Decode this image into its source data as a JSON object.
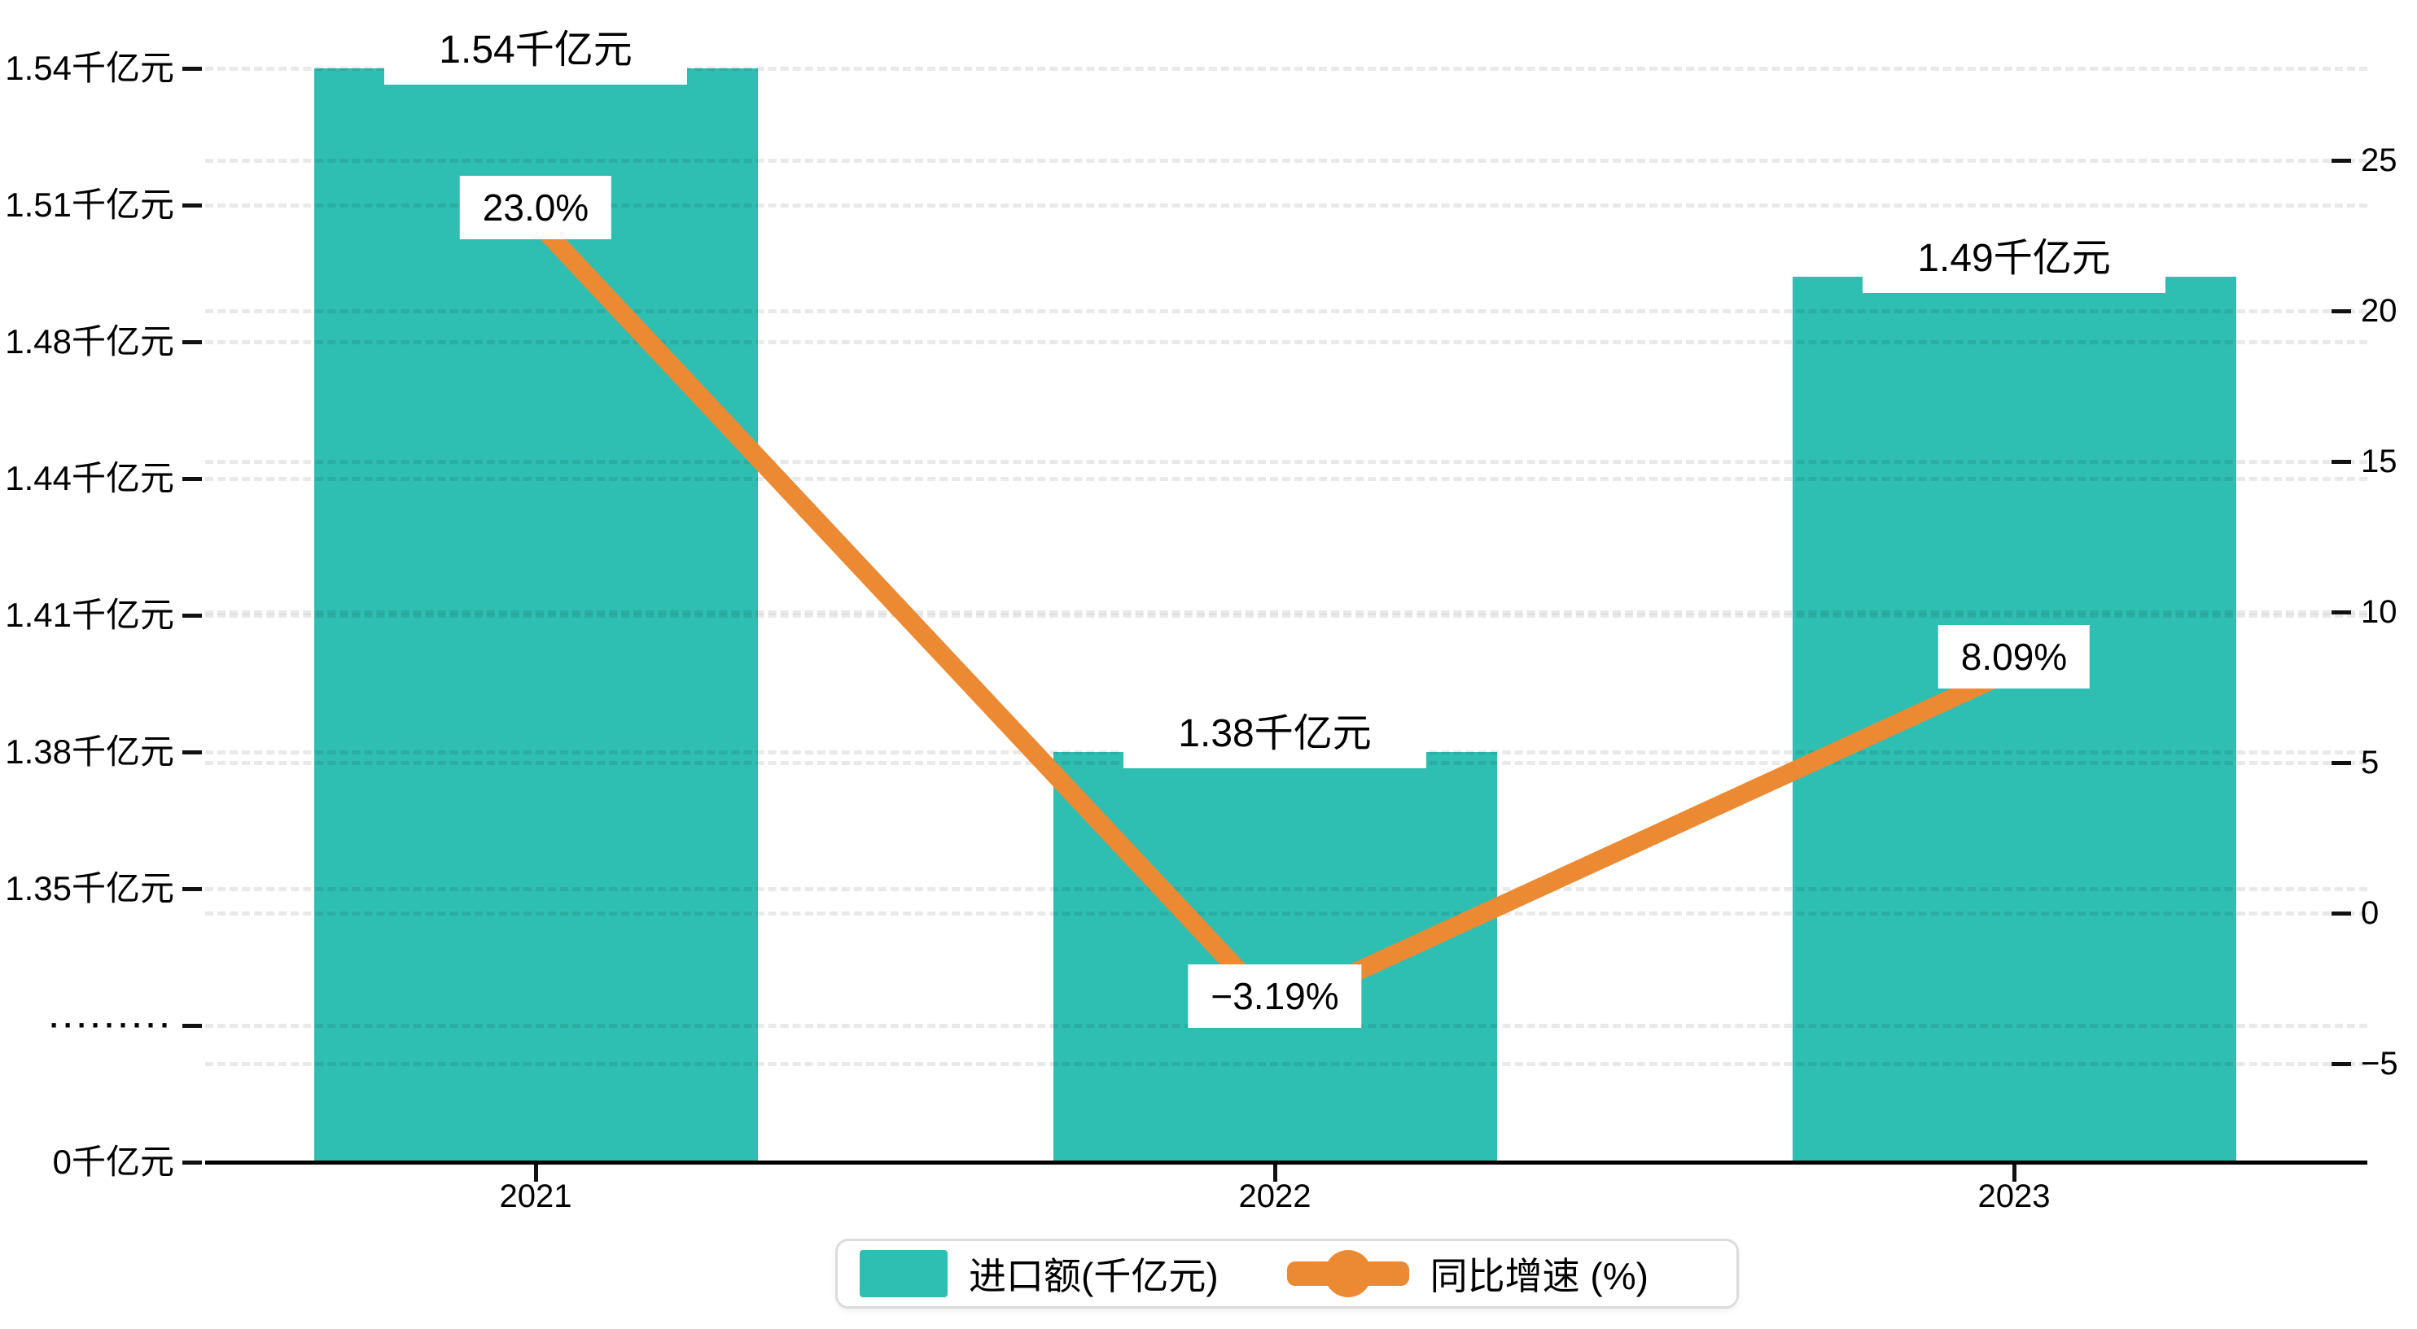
{
  "chart_data": {
    "type": "bar",
    "categories": [
      "2021",
      "2022",
      "2023"
    ],
    "series": [
      {
        "name": "进口额(千亿元)",
        "type": "bar",
        "axis": "left",
        "values": [
          1.54,
          1.38,
          1.49
        ],
        "data_labels": [
          "1.54千亿元",
          "1.38千亿元",
          "1.49千亿元"
        ]
      },
      {
        "name": "同比增速 (%)",
        "type": "line",
        "axis": "right",
        "values": [
          23.0,
          -3.19,
          8.09
        ],
        "data_labels": [
          "23.0%",
          "−3.19%",
          "8.09%"
        ]
      }
    ],
    "left_axis": {
      "tick_labels_top_to_bottom": [
        "1.54千亿元",
        "1.51千亿元",
        "1.48千亿元",
        "1.44千亿元",
        "1.41千亿元",
        "1.38千亿元",
        "1.35千亿元",
        "·········",
        "0千亿元"
      ],
      "broken_axis": true
    },
    "right_axis": {
      "tick_labels_top_to_bottom": [
        "25",
        "20",
        "15",
        "10",
        "5",
        "0",
        "−5"
      ],
      "range": [
        -5,
        25
      ]
    },
    "grid": true,
    "legend_position": "bottom"
  },
  "legend": {
    "items": [
      {
        "label": "进口额(千亿元)",
        "marker": "bar-swatch"
      },
      {
        "label": "同比增速 (%)",
        "marker": "line-dot"
      }
    ]
  },
  "colors": {
    "bar": "#2FBEB2",
    "line": "#EC8933",
    "axis": "#111111",
    "text": "#000000",
    "annotation_bg": "#ffffff",
    "legend_border": "#dcdcdc",
    "background": "#ffffff"
  }
}
